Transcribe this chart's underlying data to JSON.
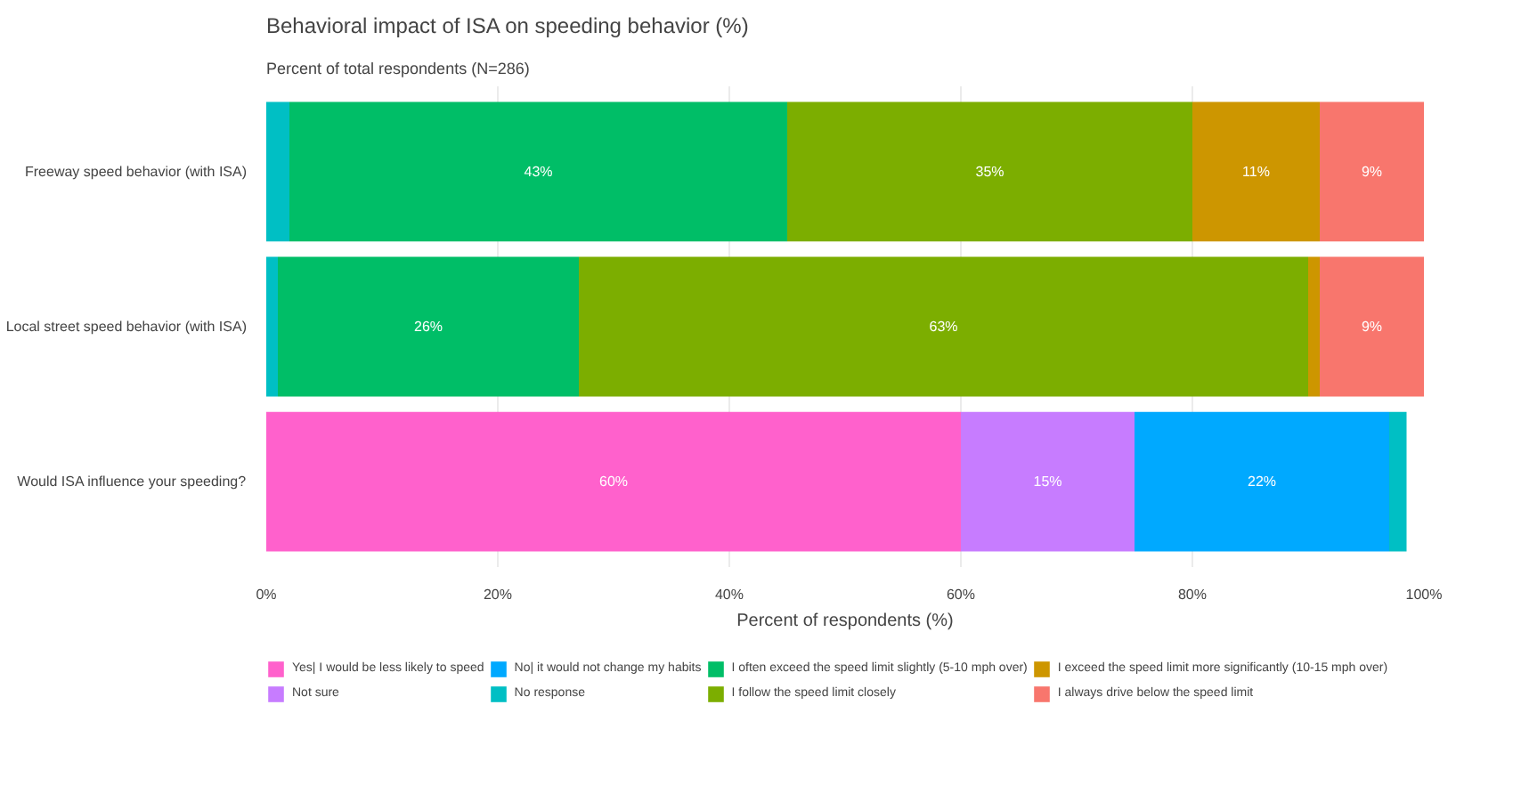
{
  "chart_data": {
    "type": "bar",
    "orientation": "horizontal",
    "stacked": true,
    "title": "Behavioral impact of ISA on speeding behavior (%)",
    "subtitle": "Percent of total respondents (N=286)",
    "xlabel": "Percent of respondents (%)",
    "categories": [
      "Freeway speed behavior (with ISA)",
      "Local street speed behavior (with ISA)",
      "Would ISA influence your speeding?"
    ],
    "xlim": [
      0,
      100
    ],
    "xticks": [
      {
        "value": 0,
        "label": "0%"
      },
      {
        "value": 20,
        "label": "20%"
      },
      {
        "value": 40,
        "label": "40%"
      },
      {
        "value": 60,
        "label": "60%"
      },
      {
        "value": 80,
        "label": "80%"
      },
      {
        "value": 100,
        "label": "100%"
      }
    ],
    "grid": "x",
    "legend": "bottom",
    "series": [
      {
        "name": "Yes| I would be less likely to speed",
        "color": "#ff61cc",
        "values": [
          null,
          null,
          60
        ],
        "value_labels": [
          null,
          null,
          "60%"
        ]
      },
      {
        "name": "Not sure",
        "color": "#c77cff",
        "values": [
          null,
          null,
          15
        ],
        "value_labels": [
          null,
          null,
          "15%"
        ]
      },
      {
        "name": "No| it would not change my habits",
        "color": "#00a9ff",
        "values": [
          null,
          null,
          22
        ],
        "value_labels": [
          null,
          null,
          "22%"
        ]
      },
      {
        "name": "No response",
        "color": "#00bfc4",
        "values": [
          2,
          1,
          1.5
        ],
        "value_labels": [
          null,
          null,
          null
        ]
      },
      {
        "name": "I often exceed the speed limit slightly (5-10 mph over)",
        "color": "#00be67",
        "values": [
          43,
          26,
          null
        ],
        "value_labels": [
          "43%",
          "26%",
          null
        ]
      },
      {
        "name": "I follow the speed limit closely",
        "color": "#7cae00",
        "values": [
          35,
          63,
          null
        ],
        "value_labels": [
          "35%",
          "63%",
          null
        ]
      },
      {
        "name": "I exceed the speed limit more significantly (10-15 mph over)",
        "color": "#cd9600",
        "values": [
          11,
          1,
          null
        ],
        "value_labels": [
          "11%",
          null,
          null
        ]
      },
      {
        "name": "I always drive below the speed limit",
        "color": "#f8766d",
        "values": [
          9,
          9,
          null
        ],
        "value_labels": [
          "9%",
          "9%",
          null
        ]
      }
    ]
  }
}
